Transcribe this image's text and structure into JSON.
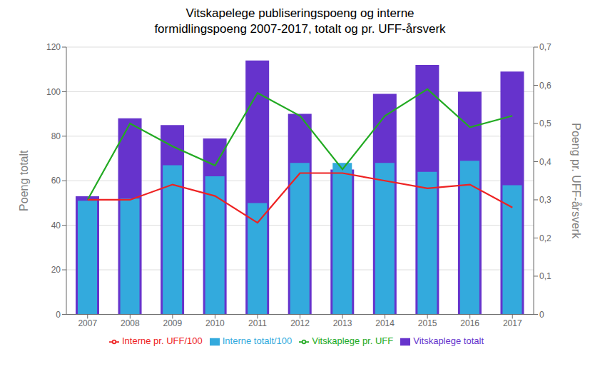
{
  "chart_data": {
    "type": "bar",
    "title": "Vitskapelege publiseringspoeng og interne\nformidlingspoeng 2007-2017, totalt og pr. UFF-årsverk",
    "categories": [
      "2007",
      "2008",
      "2009",
      "2010",
      "2011",
      "2012",
      "2013",
      "2014",
      "2015",
      "2016",
      "2017"
    ],
    "series": [
      {
        "name": "Vitskaplege totalt",
        "type": "bar",
        "color": "#6633CC",
        "values": [
          53,
          88,
          85,
          79,
          114,
          90,
          65,
          99,
          112,
          100,
          109
        ]
      },
      {
        "name": "Interne totalt/100",
        "type": "bar",
        "color": "#33AADD",
        "values": [
          51,
          52,
          67,
          62,
          50,
          68,
          68,
          68,
          64,
          69,
          58
        ]
      },
      {
        "name": "Vitskaplege pr. UFF",
        "type": "line",
        "color": "#22AA22",
        "axis": "y2",
        "values": [
          0.3,
          0.5,
          0.44,
          0.39,
          0.58,
          0.52,
          0.38,
          0.52,
          0.59,
          0.49,
          0.52
        ]
      },
      {
        "name": "Interne pr. UFF/100",
        "type": "line",
        "color": "#EE2222",
        "axis": "y2",
        "values": [
          0.3,
          0.3,
          0.34,
          0.31,
          0.24,
          0.37,
          0.37,
          0.35,
          0.33,
          0.34,
          0.28
        ]
      }
    ],
    "ylabel": "Poeng totalt",
    "y2label": "Poeng pr. UFF-årsverk",
    "ylim": [
      0,
      120
    ],
    "yticks": [
      0,
      20,
      40,
      60,
      80,
      100,
      120
    ],
    "y2lim": [
      0,
      0.7
    ],
    "y2ticks": [
      0,
      {
        "value": 0.1,
        "label": "0,1"
      },
      {
        "value": 0.2,
        "label": "0,2"
      },
      {
        "value": 0.3,
        "label": "0,3"
      },
      {
        "value": 0.4,
        "label": "0,4"
      },
      {
        "value": 0.5,
        "label": "0,5"
      },
      {
        "value": 0.6,
        "label": "0,6"
      },
      {
        "value": 0.7,
        "label": "0,7"
      }
    ],
    "grid": true,
    "legend": "bottom"
  }
}
